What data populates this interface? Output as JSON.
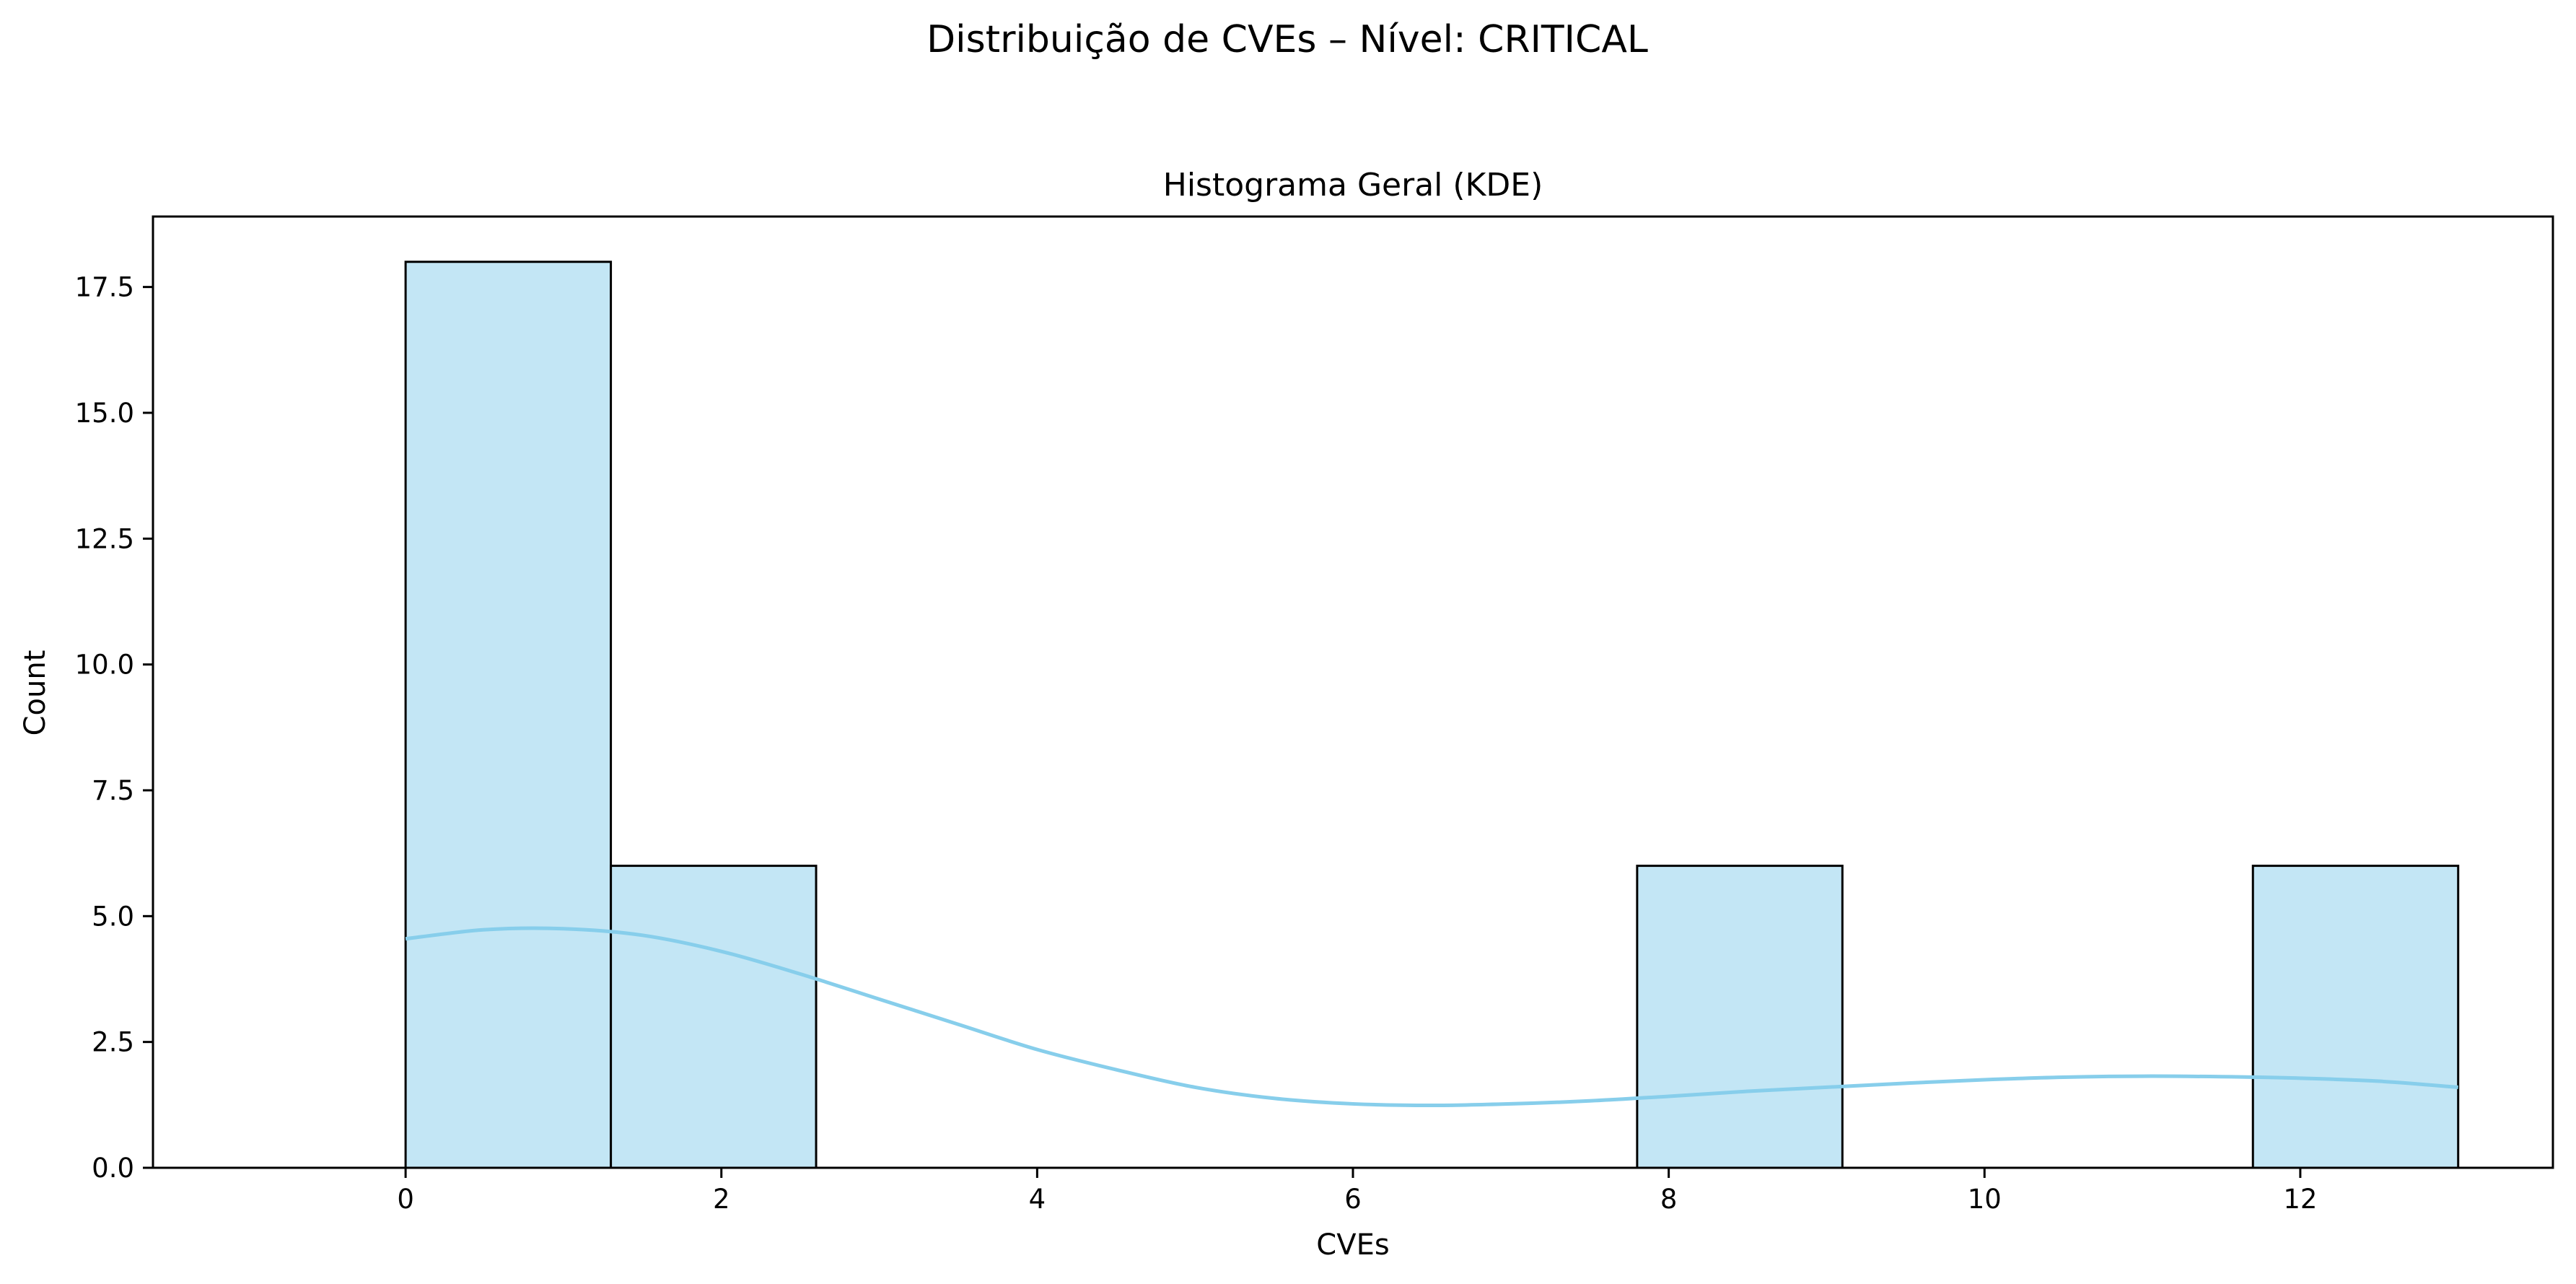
{
  "chart_data": {
    "type": "bar",
    "suptitle": "Distribuição de CVEs – Nível: CRITICAL",
    "title": "Histograma Geral (KDE)",
    "xlabel": "CVEs",
    "ylabel": "Count",
    "xlim": [
      -1.6,
      13.6
    ],
    "ylim": [
      0,
      18.9
    ],
    "xticks": [
      0,
      2,
      4,
      6,
      8,
      10,
      12
    ],
    "xtick_labels": [
      "0",
      "2",
      "4",
      "6",
      "8",
      "10",
      "12"
    ],
    "yticks": [
      0,
      2.5,
      5,
      7.5,
      10,
      12.5,
      15,
      17.5
    ],
    "ytick_labels": [
      "0.0",
      "2.5",
      "5.0",
      "7.5",
      "10.0",
      "12.5",
      "15.0",
      "17.5"
    ],
    "bins": [
      {
        "start": 0.0,
        "end": 1.3,
        "count": 18
      },
      {
        "start": 1.3,
        "end": 2.6,
        "count": 6
      },
      {
        "start": 2.6,
        "end": 3.9,
        "count": 0
      },
      {
        "start": 3.9,
        "end": 5.2,
        "count": 0
      },
      {
        "start": 5.2,
        "end": 6.5,
        "count": 0
      },
      {
        "start": 6.5,
        "end": 7.8,
        "count": 0
      },
      {
        "start": 7.8,
        "end": 9.1,
        "count": 6
      },
      {
        "start": 9.1,
        "end": 10.4,
        "count": 0
      },
      {
        "start": 10.4,
        "end": 11.7,
        "count": 0
      },
      {
        "start": 11.7,
        "end": 13.0,
        "count": 6
      }
    ],
    "kde": {
      "x": [
        0,
        0.5,
        1,
        1.5,
        2,
        2.5,
        3,
        3.5,
        4,
        4.5,
        5,
        5.5,
        6,
        6.5,
        7,
        7.5,
        8,
        8.5,
        9,
        9.5,
        10,
        10.5,
        11,
        11.5,
        12,
        12.5,
        13
      ],
      "y": [
        4.55,
        4.73,
        4.75,
        4.62,
        4.3,
        3.85,
        3.35,
        2.85,
        2.35,
        1.95,
        1.6,
        1.38,
        1.27,
        1.24,
        1.27,
        1.33,
        1.42,
        1.52,
        1.6,
        1.68,
        1.75,
        1.8,
        1.82,
        1.81,
        1.78,
        1.72,
        1.6
      ]
    },
    "colors": {
      "bar_fill": "#87ceeb",
      "bar_fill_opacity": 0.5,
      "bar_edge": "#000000",
      "kde_line": "#87ceeb"
    },
    "grid": false,
    "legend": "none"
  }
}
